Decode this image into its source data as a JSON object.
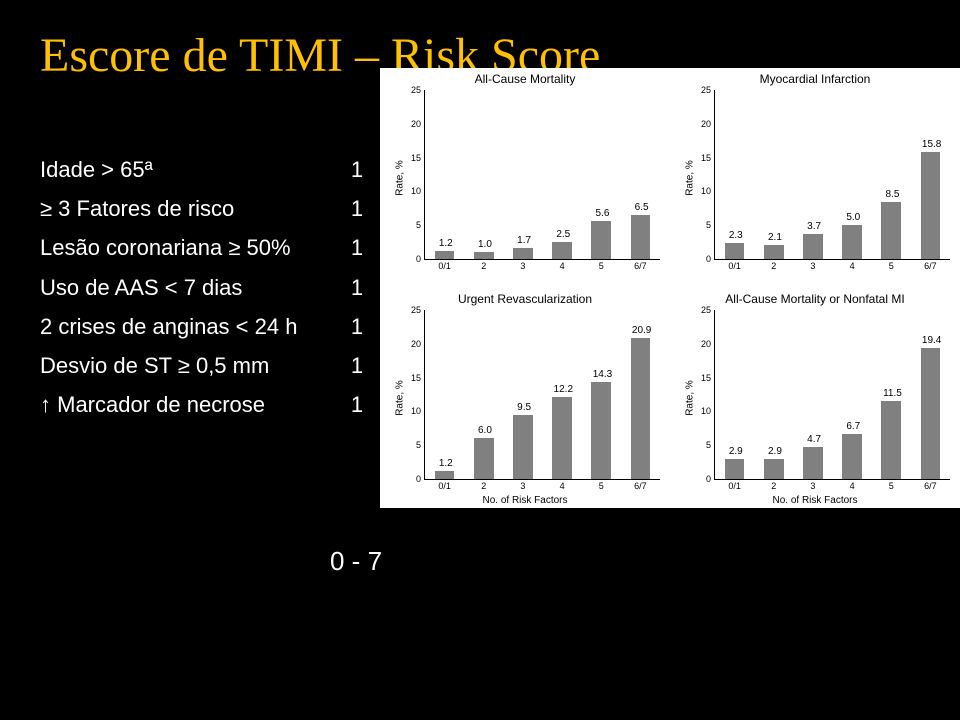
{
  "title": "Escore de TIMI – Risk Score",
  "criteria": [
    {
      "label": "Idade > 65ª",
      "value": "1"
    },
    {
      "label": "≥ 3 Fatores de risco",
      "value": "1"
    },
    {
      "label": "Lesão coronariana ≥ 50%",
      "value": "1"
    },
    {
      "label": "Uso de AAS < 7 dias",
      "value": "1"
    },
    {
      "label": "2 crises de anginas < 24 h",
      "value": "1"
    },
    {
      "label": "Desvio de ST ≥ 0,5 mm",
      "value": "1"
    },
    {
      "label": "↑ Marcador de necrose",
      "value": "1"
    }
  ],
  "range": "0 - 7",
  "charts": {
    "common": {
      "categories": [
        "0/1",
        "2",
        "3",
        "4",
        "5",
        "6/7"
      ],
      "ymax": 25,
      "ytick_step": 5,
      "bar_color": "#808080",
      "background": "#ffffff",
      "axis_color": "#000000",
      "title_fontsize": 12,
      "tick_fontsize": 9,
      "barval_fontsize": 10,
      "ylabel": "Rate, %"
    },
    "panels": [
      {
        "id": "pA",
        "title": "All-Cause Mortality",
        "values": [
          1.2,
          1.0,
          1.7,
          2.5,
          5.6,
          6.5
        ]
      },
      {
        "id": "pB",
        "title": "Myocardial Infarction",
        "values": [
          2.3,
          2.1,
          3.7,
          5.0,
          8.5,
          15.8
        ]
      },
      {
        "id": "pC",
        "title": "Urgent Revascularization",
        "values": [
          1.2,
          6.0,
          9.5,
          12.2,
          14.3,
          20.9
        ],
        "xlabel": "No. of Risk Factors"
      },
      {
        "id": "pD",
        "title": "All-Cause Mortality or Nonfatal MI",
        "values": [
          2.9,
          2.9,
          4.7,
          6.7,
          11.5,
          19.4
        ],
        "xlabel": "No. of Risk Factors"
      }
    ]
  }
}
